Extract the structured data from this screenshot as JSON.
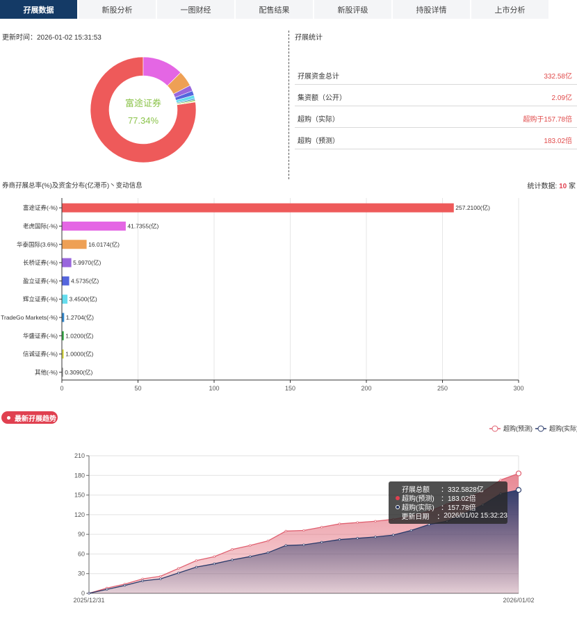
{
  "tabs": [
    "孖展数据",
    "新股分析",
    "一图财经",
    "配售结果",
    "新股评级",
    "持股详情",
    "上市分析"
  ],
  "update_time": "更新时间：2026-01-02 15:31:53",
  "donut": {
    "center_name": "富途证券",
    "center_pct": "77.34%",
    "colors": [
      "#ee5a5a",
      "#e466e4",
      "#eea055",
      "#9966dd",
      "#5566dd",
      "#66ddee",
      "#3388cc",
      "#33aa44",
      "#dddd44",
      "#999999"
    ]
  },
  "stats": {
    "title": "孖展统计",
    "rows": [
      {
        "label": "孖展资金总计",
        "value": "332.58亿"
      },
      {
        "label": "集资额（公开）",
        "value": "2.09亿"
      },
      {
        "label": "超购（实际）",
        "value": "超购于157.78倍"
      },
      {
        "label": "超购（预测）",
        "value": "183.02倍"
      }
    ]
  },
  "bar_section": {
    "title": "券商孖展总率(%)及资金分布(亿港币)丶变动信息",
    "count_prefix": "统计数据:",
    "count_value": "10",
    "count_suffix": "家"
  },
  "badge": "最新孖展趋势",
  "legend": {
    "predicted": "超购(预测)",
    "actual": "超购(实际)"
  },
  "tooltip": {
    "rows": [
      {
        "k": "孖展总额",
        "v": "332.5828亿"
      },
      {
        "k": "超购(预测)",
        "v": "183.02倍"
      },
      {
        "k": "超购(实际)",
        "v": "157.78倍"
      },
      {
        "k": "更新日期",
        "v": "2026/01/02 15:32:23"
      }
    ]
  },
  "chart_data": [
    {
      "type": "pie",
      "categories": [
        "富途证券",
        "老虎国际",
        "华泰国际",
        "长桥证券",
        "盈立证券",
        "辉立证券",
        "TradeGo Markets",
        "华盛证券",
        "信诚证券",
        "其他"
      ],
      "values": [
        257.21,
        41.7355,
        16.0174,
        5.997,
        4.5735,
        3.45,
        1.2704,
        1.02,
        1.0,
        0.309
      ]
    },
    {
      "type": "bar",
      "orientation": "horizontal",
      "categories": [
        "富途证券(-%)",
        "老虎国际(-%)",
        "华泰国际(3.6%)",
        "长桥证券(-%)",
        "盈立证券(-%)",
        "辉立证券(-%)",
        "TradeGo Markets(-%)",
        "华盛证券(-%)",
        "信诚证券(-%)",
        "其他(-%)"
      ],
      "values": [
        257.21,
        41.7355,
        16.0174,
        5.997,
        4.5735,
        3.45,
        1.2704,
        1.02,
        1.0,
        0.309
      ],
      "value_labels": [
        "257.2100(亿)",
        "41.7355(亿)",
        "16.0174(亿)",
        "5.9970(亿)",
        "4.5735(亿)",
        "3.4500(亿)",
        "1.2704(亿)",
        "1.0200(亿)",
        "1.0000(亿)",
        "0.3090(亿)"
      ],
      "colors": [
        "#ee5a5a",
        "#e466e4",
        "#eea055",
        "#9966dd",
        "#5566dd",
        "#66ddee",
        "#3388cc",
        "#33aa44",
        "#dddd44",
        "#999999"
      ],
      "xlim": [
        0,
        300
      ],
      "xticks": [
        0,
        50,
        100,
        150,
        200,
        250,
        300
      ],
      "grid": true
    },
    {
      "type": "area",
      "x_labels": [
        "2025/12/31",
        "2026/01/02"
      ],
      "ylim": [
        0,
        210
      ],
      "yticks": [
        0,
        30,
        60,
        90,
        120,
        150,
        180,
        210
      ],
      "grid": true,
      "legend_position": "top-right",
      "series": [
        {
          "name": "超购(预测)",
          "color": "#e06070",
          "values": [
            0,
            8,
            14,
            22,
            26,
            38,
            50,
            56,
            67,
            73,
            80,
            95,
            96,
            101,
            106,
            108,
            110,
            113,
            118,
            125,
            136,
            145,
            155,
            173,
            183.02
          ]
        },
        {
          "name": "超购(实际)",
          "color": "#2a3a6a",
          "values": [
            0,
            6,
            12,
            19,
            22,
            31,
            40,
            45,
            51,
            56,
            62,
            73,
            74,
            78,
            82,
            84,
            86,
            89,
            96,
            105,
            110,
            122,
            135,
            152,
            157.78
          ]
        }
      ]
    }
  ]
}
